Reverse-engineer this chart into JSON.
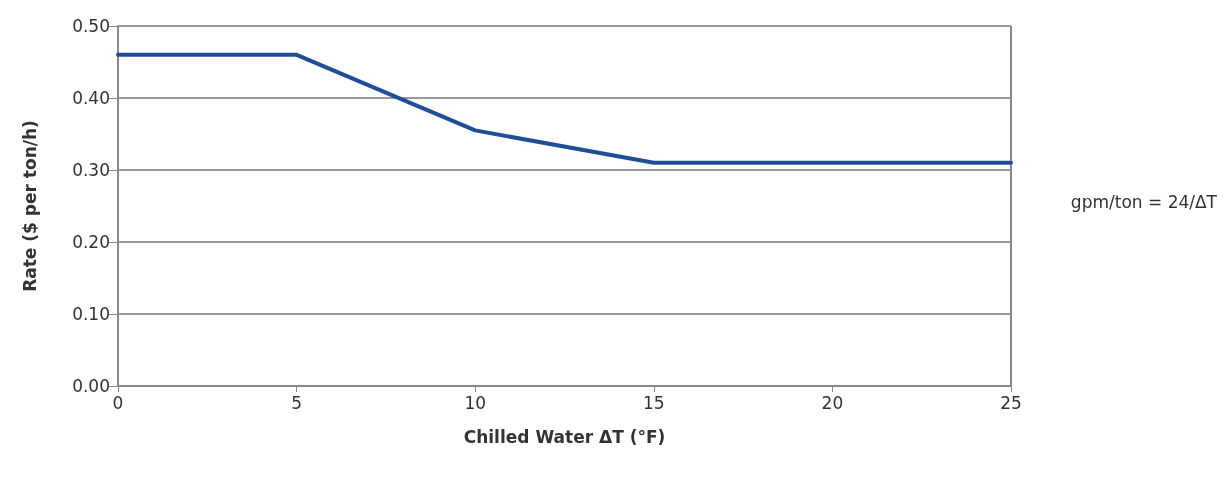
{
  "chart_data": {
    "type": "line",
    "xlabel": "Chilled Water ΔT (°F)",
    "ylabel": "Rate ($ per ton/h)",
    "x": [
      0,
      5,
      10,
      15,
      25
    ],
    "series": [
      {
        "color": "#1f4e96",
        "values": [
          0.46,
          0.46,
          0.355,
          0.31,
          0.31
        ]
      }
    ],
    "xlim": [
      0,
      25
    ],
    "xticks": [
      0,
      5,
      10,
      15,
      20,
      25
    ],
    "ylim": [
      0,
      0.5
    ],
    "yticks": [
      {
        "value": 0,
        "label": "0.00"
      },
      {
        "value": 0.1,
        "label": "0.10"
      },
      {
        "value": 0.2,
        "label": "0.20"
      },
      {
        "value": 0.3,
        "label": "0.30"
      },
      {
        "value": 0.4,
        "label": "0.40"
      },
      {
        "value": 0.5,
        "label": "0.50"
      }
    ],
    "grid": "y",
    "marker": "none",
    "line_style": "solid",
    "annotations": [
      "gpm/ton = 24/ΔT"
    ]
  }
}
